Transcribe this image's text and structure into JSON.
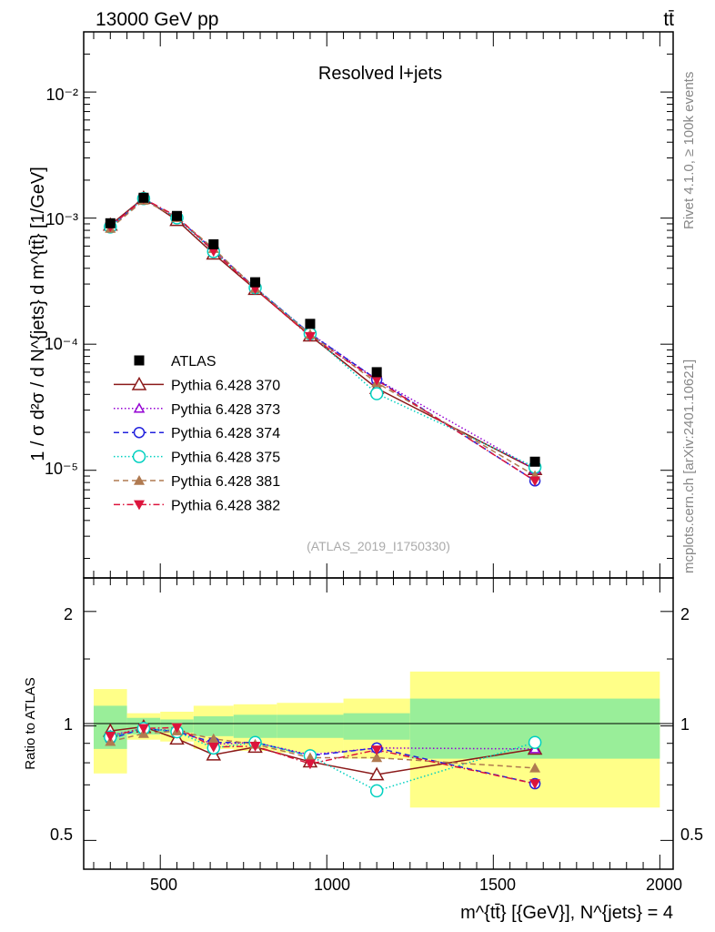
{
  "header": {
    "energy_label": "13000 GeV pp",
    "process_label": "tt̄"
  },
  "side": {
    "rivet_label": "Rivet 4.1.0, ≥ 100k events",
    "mcplots_label": "mcplots.cern.ch [arXiv:2401.10621]"
  },
  "main_plot": {
    "title": "Resolved l+jets",
    "analysis_id": "(ATLAS_2019_I1750330)",
    "ylabel": "1 / σ d²σ / d N^{jets} d m^{tt̄} [1/GeV]",
    "y_tick_labels": [
      "10⁻⁵",
      "10⁻⁴",
      "10⁻³",
      "10⁻²"
    ]
  },
  "ratio_plot": {
    "ylabel": "Ratio to ATLAS",
    "y_tick_labels": [
      "0.5",
      "1",
      "2"
    ],
    "x_tick_labels": [
      "500",
      "1000",
      "1500",
      "2000"
    ]
  },
  "xlabel": "m^{tt̄} [{GeV}], N^{jets} = 4",
  "chart_data": {
    "type": "scatter",
    "title": "Resolved l+jets",
    "xlabel": "m^{tt̄} [{GeV}], N^{jets} = 4",
    "ylabel": "1 / σ d²σ / d N^{jets} d m^{tt̄} [1/GeV]",
    "xlim": [
      270,
      2040
    ],
    "ylim": [
      1.4e-06,
      0.03
    ],
    "yscale": "log",
    "ratio_ylim": [
      0.42,
      2.45
    ],
    "ratio_ylabel": "Ratio to ATLAS",
    "legend_position": "left-center",
    "bin_edges": [
      300,
      400,
      500,
      600,
      720,
      850,
      1050,
      1250,
      2000
    ],
    "x": [
      350,
      450,
      550,
      660,
      785,
      950,
      1150,
      1625
    ],
    "data": {
      "name": "ATLAS",
      "color": "#000000",
      "values": [
        0.00091,
        0.00145,
        0.00104,
        0.00062,
        0.00031,
        0.000145,
        6e-05,
        1.17e-05
      ],
      "stat_band_rel": [
        0.13,
        0.05,
        0.04,
        0.06,
        0.07,
        0.07,
        0.08,
        0.18
      ],
      "total_band_rel": [
        0.25,
        0.08,
        0.09,
        0.13,
        0.14,
        0.15,
        0.18,
        0.39
      ]
    },
    "series": [
      {
        "name": "Pythia 6.428 370",
        "color": "#8b1a1a",
        "marker": "triangle-open",
        "dash": "",
        "width": 1.5,
        "ratios": [
          0.97,
          0.995,
          0.925,
          0.84,
          0.88,
          0.805,
          0.745,
          0.87
        ]
      },
      {
        "name": "Pythia 6.428 373",
        "color": "#9400d3",
        "marker": "triangle-open-small",
        "dash": "1.5,2.5",
        "width": 1.5,
        "ratios": [
          0.945,
          0.985,
          0.97,
          0.895,
          0.905,
          0.84,
          0.875,
          0.87
        ]
      },
      {
        "name": "Pythia 6.428 374",
        "color": "#2222dd",
        "marker": "circle-open",
        "dash": "6,4",
        "width": 1.5,
        "ratios": [
          0.925,
          0.985,
          0.965,
          0.905,
          0.905,
          0.835,
          0.875,
          0.705
        ]
      },
      {
        "name": "Pythia 6.428 375",
        "color": "#00d0c0",
        "marker": "circle-open-large",
        "dash": "1.5,2.5",
        "width": 1.5,
        "ratios": [
          0.935,
          0.985,
          0.965,
          0.875,
          0.905,
          0.835,
          0.675,
          0.905
        ]
      },
      {
        "name": "Pythia 6.428 381",
        "color": "#b07a50",
        "marker": "triangle-filled",
        "dash": "6,4",
        "width": 1.5,
        "ratios": [
          0.91,
          0.955,
          0.97,
          0.925,
          0.895,
          0.825,
          0.825,
          0.775
        ]
      },
      {
        "name": "Pythia 6.428 382",
        "color": "#dc143c",
        "marker": "triangle-down-filled",
        "dash": "7,3,1.5,3",
        "width": 1.5,
        "ratios": [
          0.94,
          0.985,
          0.99,
          0.88,
          0.885,
          0.795,
          0.865,
          0.705
        ]
      }
    ]
  }
}
